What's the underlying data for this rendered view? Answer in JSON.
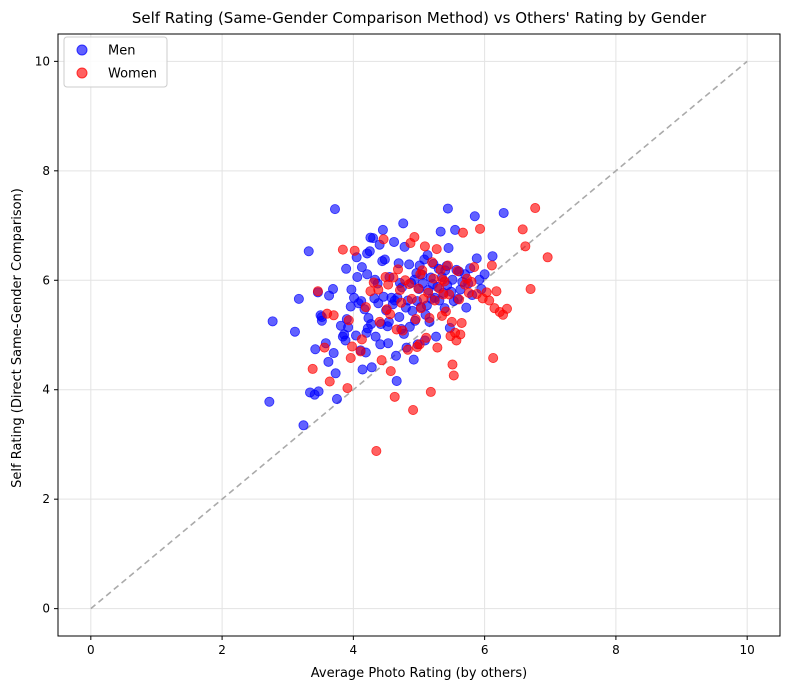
{
  "chart_data": {
    "type": "scatter",
    "title": "Self Rating (Same-Gender Comparison Method) vs Others' Rating by Gender",
    "xlabel": "Average Photo Rating (by others)",
    "ylabel": "Self Rating (Direct Same-Gender Comparison)",
    "xlim": [
      -0.5,
      10.5
    ],
    "ylim": [
      -0.5,
      10.5
    ],
    "xticks": [
      0,
      2,
      4,
      6,
      8,
      10
    ],
    "yticks": [
      0,
      2,
      4,
      6,
      8,
      10
    ],
    "grid": true,
    "legend_position": "top-left",
    "reference_line": {
      "x": [
        0,
        10
      ],
      "y": [
        0,
        10
      ],
      "style": "dashed",
      "color": "#999999"
    },
    "series": [
      {
        "name": "Men",
        "color": "#0000ff",
        "points": [
          [
            2.72,
            3.78
          ],
          [
            2.77,
            5.25
          ],
          [
            3.11,
            5.06
          ],
          [
            3.17,
            5.66
          ],
          [
            3.24,
            3.35
          ],
          [
            3.32,
            6.53
          ],
          [
            3.34,
            3.95
          ],
          [
            3.41,
            3.91
          ],
          [
            3.42,
            4.74
          ],
          [
            3.46,
            5.78
          ],
          [
            3.47,
            3.97
          ],
          [
            3.5,
            5.36
          ],
          [
            3.52,
            5.26
          ],
          [
            3.58,
            4.85
          ],
          [
            3.62,
            4.51
          ],
          [
            3.63,
            5.72
          ],
          [
            3.69,
            5.84
          ],
          [
            3.7,
            4.67
          ],
          [
            3.72,
            7.3
          ],
          [
            3.73,
            4.3
          ],
          [
            3.75,
            3.83
          ],
          [
            3.84,
            4.97
          ],
          [
            3.86,
            5.01
          ],
          [
            3.88,
            4.9
          ],
          [
            3.89,
            6.21
          ],
          [
            3.9,
            5.29
          ],
          [
            3.92,
            5.14
          ],
          [
            3.96,
            5.52
          ],
          [
            3.97,
            5.83
          ],
          [
            4.01,
            5.68
          ],
          [
            4.04,
            4.99
          ],
          [
            4.05,
            6.42
          ],
          [
            4.06,
            6.06
          ],
          [
            4.08,
            5.58
          ],
          [
            4.11,
            4.72
          ],
          [
            4.12,
            5.62
          ],
          [
            4.13,
            6.24
          ],
          [
            4.14,
            4.37
          ],
          [
            4.17,
            5.47
          ],
          [
            4.19,
            4.68
          ],
          [
            4.2,
            5.04
          ],
          [
            4.21,
            6.11
          ],
          [
            4.22,
            5.12
          ],
          [
            4.23,
            5.31
          ],
          [
            4.25,
            6.53
          ],
          [
            4.26,
            6.78
          ],
          [
            4.27,
            5.2
          ],
          [
            4.28,
            4.41
          ],
          [
            4.3,
            6.77
          ],
          [
            4.32,
            5.67
          ],
          [
            4.33,
            6.01
          ],
          [
            4.34,
            4.97
          ],
          [
            4.37,
            5.94
          ],
          [
            4.38,
            5.58
          ],
          [
            4.4,
            6.65
          ],
          [
            4.41,
            4.83
          ],
          [
            4.42,
            5.2
          ],
          [
            4.44,
            6.35
          ],
          [
            4.45,
            6.92
          ],
          [
            4.46,
            5.7
          ],
          [
            4.48,
            6.38
          ],
          [
            4.5,
            5.45
          ],
          [
            4.52,
            5.16
          ],
          [
            4.53,
            4.85
          ],
          [
            4.54,
            5.24
          ],
          [
            4.55,
            6.06
          ],
          [
            4.58,
            5.68
          ],
          [
            4.6,
            5.56
          ],
          [
            4.62,
            6.7
          ],
          [
            4.63,
            5.63
          ],
          [
            4.65,
            4.62
          ],
          [
            4.66,
            4.16
          ],
          [
            4.67,
            5.68
          ],
          [
            4.69,
            6.31
          ],
          [
            4.7,
            5.33
          ],
          [
            4.71,
            5.95
          ],
          [
            4.73,
            5.11
          ],
          [
            4.74,
            5.87
          ],
          [
            4.76,
            7.04
          ],
          [
            4.77,
            5.02
          ],
          [
            4.78,
            6.61
          ],
          [
            4.8,
            5.5
          ],
          [
            4.81,
            4.77
          ],
          [
            4.83,
            5.63
          ],
          [
            4.85,
            6.29
          ],
          [
            4.86,
            5.15
          ],
          [
            4.88,
            5.95
          ],
          [
            4.9,
            5.44
          ],
          [
            4.92,
            4.55
          ],
          [
            4.93,
            6.01
          ],
          [
            4.94,
            5.26
          ],
          [
            4.96,
            6.13
          ],
          [
            4.97,
            5.62
          ],
          [
            4.98,
            4.83
          ],
          [
            5.0,
            5.84
          ],
          [
            5.01,
            6.27
          ],
          [
            5.03,
            5.51
          ],
          [
            5.05,
            6.1
          ],
          [
            5.06,
            5.95
          ],
          [
            5.08,
            6.38
          ],
          [
            5.09,
            4.9
          ],
          [
            5.1,
            5.37
          ],
          [
            5.12,
            5.54
          ],
          [
            5.13,
            6.46
          ],
          [
            5.14,
            5.82
          ],
          [
            5.16,
            5.24
          ],
          [
            5.18,
            6.05
          ],
          [
            5.19,
            5.66
          ],
          [
            5.21,
            5.93
          ],
          [
            5.22,
            6.3
          ],
          [
            5.24,
            5.68
          ],
          [
            5.26,
            4.97
          ],
          [
            5.28,
            5.88
          ],
          [
            5.3,
            6.21
          ],
          [
            5.31,
            5.63
          ],
          [
            5.33,
            6.89
          ],
          [
            5.35,
            6.06
          ],
          [
            5.37,
            5.77
          ],
          [
            5.39,
            5.49
          ],
          [
            5.4,
            6.18
          ],
          [
            5.42,
            6.26
          ],
          [
            5.43,
            5.91
          ],
          [
            5.44,
            7.31
          ],
          [
            5.45,
            6.59
          ],
          [
            5.47,
            5.13
          ],
          [
            5.49,
            5.79
          ],
          [
            5.51,
            6.01
          ],
          [
            5.53,
            5.62
          ],
          [
            5.55,
            6.92
          ],
          [
            5.57,
            6.19
          ],
          [
            5.59,
            5.66
          ],
          [
            5.61,
            6.16
          ],
          [
            5.63,
            5.83
          ],
          [
            5.66,
            5.97
          ],
          [
            5.7,
            6.11
          ],
          [
            5.72,
            5.5
          ],
          [
            5.75,
            5.94
          ],
          [
            5.78,
            6.22
          ],
          [
            5.81,
            5.73
          ],
          [
            5.85,
            7.17
          ],
          [
            5.88,
            6.4
          ],
          [
            5.92,
            6.01
          ],
          [
            5.95,
            5.84
          ],
          [
            6.0,
            6.11
          ],
          [
            6.12,
            6.44
          ],
          [
            6.29,
            7.23
          ],
          [
            3.52,
            5.33
          ],
          [
            3.81,
            5.17
          ],
          [
            4.21,
            6.49
          ]
        ]
      },
      {
        "name": "Women",
        "color": "#ff0000",
        "points": [
          [
            3.38,
            4.38
          ],
          [
            3.46,
            5.8
          ],
          [
            3.56,
            4.77
          ],
          [
            3.6,
            5.39
          ],
          [
            3.64,
            4.15
          ],
          [
            3.7,
            5.36
          ],
          [
            3.84,
            6.56
          ],
          [
            3.91,
            4.03
          ],
          [
            3.93,
            5.27
          ],
          [
            3.96,
            4.58
          ],
          [
            3.98,
            4.79
          ],
          [
            4.02,
            6.54
          ],
          [
            4.11,
            4.7
          ],
          [
            4.13,
            4.92
          ],
          [
            4.19,
            5.51
          ],
          [
            4.26,
            5.8
          ],
          [
            4.31,
            5.96
          ],
          [
            4.35,
            2.88
          ],
          [
            4.38,
            5.83
          ],
          [
            4.4,
            5.24
          ],
          [
            4.43,
            4.54
          ],
          [
            4.46,
            6.75
          ],
          [
            4.51,
            5.47
          ],
          [
            4.53,
            5.92
          ],
          [
            4.56,
            5.38
          ],
          [
            4.57,
            4.34
          ],
          [
            4.61,
            6.05
          ],
          [
            4.63,
            3.87
          ],
          [
            4.66,
            5.1
          ],
          [
            4.68,
            6.2
          ],
          [
            4.71,
            5.82
          ],
          [
            4.73,
            5.59
          ],
          [
            4.75,
            5.08
          ],
          [
            4.79,
            6.0
          ],
          [
            4.83,
            4.73
          ],
          [
            4.85,
            5.93
          ],
          [
            4.87,
            6.68
          ],
          [
            4.89,
            5.66
          ],
          [
            4.91,
            3.63
          ],
          [
            4.93,
            6.79
          ],
          [
            4.95,
            5.29
          ],
          [
            4.97,
            4.78
          ],
          [
            4.99,
            5.85
          ],
          [
            5.02,
            6.11
          ],
          [
            5.03,
            5.49
          ],
          [
            5.05,
            6.18
          ],
          [
            5.07,
            5.66
          ],
          [
            5.09,
            6.62
          ],
          [
            5.11,
            4.95
          ],
          [
            5.14,
            5.77
          ],
          [
            5.16,
            5.31
          ],
          [
            5.18,
            3.96
          ],
          [
            5.2,
            6.33
          ],
          [
            5.22,
            6.03
          ],
          [
            5.24,
            5.63
          ],
          [
            5.27,
            6.57
          ],
          [
            5.28,
            4.77
          ],
          [
            5.31,
            5.85
          ],
          [
            5.33,
            6.19
          ],
          [
            5.35,
            5.35
          ],
          [
            5.37,
            5.74
          ],
          [
            5.39,
            5.98
          ],
          [
            5.41,
            5.43
          ],
          [
            5.44,
            6.27
          ],
          [
            5.46,
            5.74
          ],
          [
            5.48,
            4.98
          ],
          [
            5.5,
            5.24
          ],
          [
            5.51,
            4.46
          ],
          [
            5.53,
            4.26
          ],
          [
            5.55,
            5.04
          ],
          [
            5.57,
            4.9
          ],
          [
            5.59,
            6.17
          ],
          [
            5.61,
            5.65
          ],
          [
            5.63,
            5.01
          ],
          [
            5.65,
            5.22
          ],
          [
            5.67,
            6.87
          ],
          [
            5.7,
            5.92
          ],
          [
            5.73,
            6.03
          ],
          [
            5.76,
            5.77
          ],
          [
            5.8,
            5.97
          ],
          [
            5.84,
            6.24
          ],
          [
            5.88,
            5.75
          ],
          [
            5.93,
            6.94
          ],
          [
            5.97,
            5.67
          ],
          [
            6.03,
            5.78
          ],
          [
            6.07,
            5.63
          ],
          [
            6.11,
            6.27
          ],
          [
            6.13,
            4.58
          ],
          [
            6.15,
            5.49
          ],
          [
            6.18,
            5.8
          ],
          [
            6.23,
            5.42
          ],
          [
            6.28,
            5.37
          ],
          [
            6.34,
            5.48
          ],
          [
            6.58,
            6.93
          ],
          [
            6.62,
            6.62
          ],
          [
            6.7,
            5.84
          ],
          [
            6.77,
            7.32
          ],
          [
            6.96,
            6.42
          ],
          [
            5.01,
            4.83
          ],
          [
            4.49,
            6.06
          ],
          [
            5.36,
            6.01
          ]
        ]
      }
    ]
  }
}
